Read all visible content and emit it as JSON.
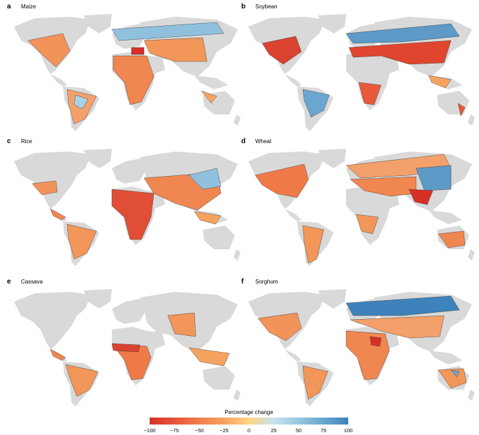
{
  "panels": [
    {
      "tag": "a",
      "crop": "Maize"
    },
    {
      "tag": "b",
      "crop": "Soybean"
    },
    {
      "tag": "c",
      "crop": "Rice"
    },
    {
      "tag": "d",
      "crop": "Wheat"
    },
    {
      "tag": "e",
      "crop": "Cassava"
    },
    {
      "tag": "f",
      "crop": "Sorghum"
    }
  ],
  "legend": {
    "title": "Percentage change",
    "ticks": [
      "−100",
      "−75",
      "−50",
      "−25",
      "0",
      "25",
      "50",
      "75",
      "100"
    ],
    "colors": [
      "#d73027",
      "#e8553a",
      "#f07e4b",
      "#f6a35f",
      "#fdd484",
      "#c6e3ee",
      "#96c6df",
      "#6aa6cf",
      "#3e82bb"
    ]
  },
  "colors": {
    "land": "#d9d9d9",
    "ocean": "#ffffff"
  }
}
